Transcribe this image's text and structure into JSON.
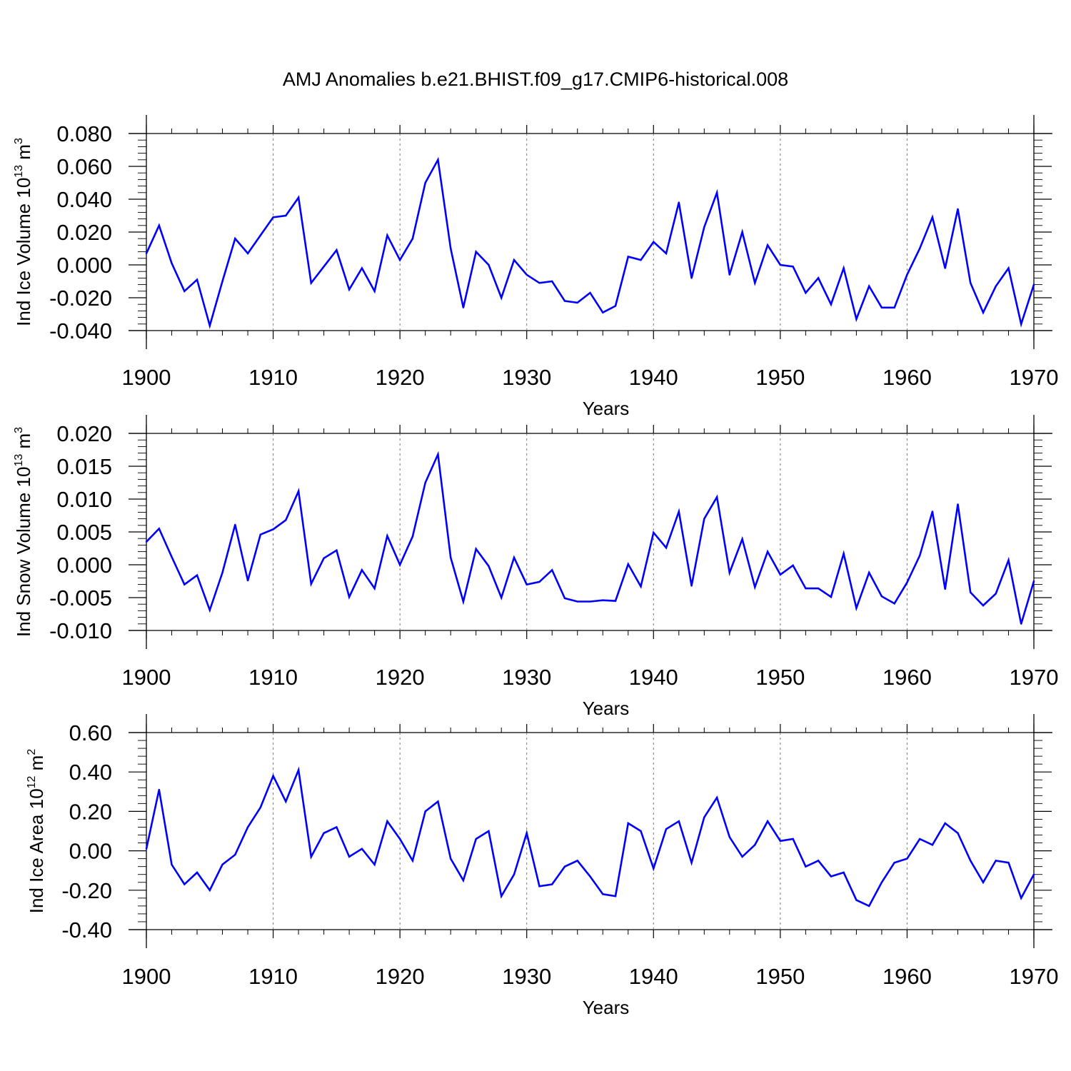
{
  "title": "AMJ Anomalies b.e21.BHIST.f09_g17.CMIP6-historical.008",
  "series_color": "#0000ff",
  "chart_data": [
    {
      "type": "line",
      "ylabel_main": "Ind Ice Volume 10",
      "ylabel_exp": "13",
      "ylabel_unit": " m",
      "ylabel_unit_exp": "3",
      "xlabel": "Years",
      "xlim": [
        1900,
        1970
      ],
      "ylim": [
        -0.04,
        0.08
      ],
      "yticks": [
        -0.04,
        -0.02,
        0.0,
        0.02,
        0.04,
        0.06,
        0.08
      ],
      "ytick_labels": [
        "-0.040",
        "-0.020",
        "0.000",
        "0.020",
        "0.040",
        "0.060",
        "0.080"
      ],
      "xticks": [
        1900,
        1910,
        1920,
        1930,
        1940,
        1950,
        1960,
        1970
      ],
      "xtick_labels": [
        "1900",
        "1910",
        "1920",
        "1930",
        "1940",
        "1950",
        "1960",
        "1970"
      ],
      "x_start": 1900,
      "values": [
        0.007,
        0.024,
        0.001,
        -0.016,
        -0.009,
        -0.037,
        -0.01,
        0.016,
        0.007,
        0.018,
        0.029,
        0.03,
        0.041,
        -0.011,
        -0.001,
        0.009,
        -0.015,
        -0.002,
        -0.016,
        0.018,
        0.003,
        0.016,
        0.05,
        0.064,
        0.01,
        -0.026,
        0.008,
        0.0,
        -0.02,
        0.003,
        -0.006,
        -0.011,
        -0.01,
        -0.022,
        -0.023,
        -0.017,
        -0.029,
        -0.025,
        0.005,
        0.003,
        0.014,
        0.007,
        0.038,
        -0.008,
        0.023,
        0.044,
        -0.006,
        0.02,
        -0.011,
        0.012,
        0.0,
        -0.001,
        -0.017,
        -0.008,
        -0.024,
        -0.002,
        -0.033,
        -0.013,
        -0.026,
        -0.026,
        -0.006,
        0.01,
        0.029,
        -0.002,
        0.034,
        -0.011,
        -0.029,
        -0.013,
        -0.002,
        -0.036,
        -0.012
      ]
    },
    {
      "type": "line",
      "ylabel_main": "Ind Snow Volume 10",
      "ylabel_exp": "13",
      "ylabel_unit": " m",
      "ylabel_unit_exp": "3",
      "xlabel": "Years",
      "xlim": [
        1900,
        1970
      ],
      "ylim": [
        -0.01,
        0.02
      ],
      "yticks": [
        -0.01,
        -0.005,
        0.0,
        0.005,
        0.01,
        0.015,
        0.02
      ],
      "ytick_labels": [
        "-0.010",
        "-0.005",
        "0.000",
        "0.005",
        "0.010",
        "0.015",
        "0.020"
      ],
      "xticks": [
        1900,
        1910,
        1920,
        1930,
        1940,
        1950,
        1960,
        1970
      ],
      "xtick_labels": [
        "1900",
        "1910",
        "1920",
        "1930",
        "1940",
        "1950",
        "1960",
        "1970"
      ],
      "x_start": 1900,
      "values": [
        0.0035,
        0.0055,
        0.0012,
        -0.003,
        -0.0016,
        -0.0069,
        -0.0012,
        0.0061,
        -0.0024,
        0.0046,
        0.0054,
        0.0068,
        0.0112,
        -0.0029,
        0.001,
        0.0022,
        -0.0049,
        -0.0008,
        -0.0036,
        0.0044,
        0.0,
        0.0043,
        0.0125,
        0.0168,
        0.0011,
        -0.0056,
        0.0024,
        -0.0002,
        -0.005,
        0.0011,
        -0.003,
        -0.0026,
        -0.0008,
        -0.0051,
        -0.0056,
        -0.0056,
        -0.0054,
        -0.0055,
        0.0001,
        -0.0033,
        0.0049,
        0.0026,
        0.0081,
        -0.0032,
        0.007,
        0.0103,
        -0.0012,
        0.0039,
        -0.0034,
        0.002,
        -0.0015,
        -0.0001,
        -0.0036,
        -0.0036,
        -0.0049,
        0.0017,
        -0.0066,
        -0.0012,
        -0.0048,
        -0.0059,
        -0.0027,
        0.0014,
        0.0081,
        -0.0037,
        0.0092,
        -0.0042,
        -0.0062,
        -0.0044,
        0.0007,
        -0.009,
        -0.0025
      ]
    },
    {
      "type": "line",
      "ylabel_main": "Ind Ice Area 10",
      "ylabel_exp": "12",
      "ylabel_unit": " m",
      "ylabel_unit_exp": "2",
      "xlabel": "Years",
      "xlim": [
        1900,
        1970
      ],
      "ylim": [
        -0.4,
        0.6
      ],
      "yticks": [
        -0.4,
        -0.2,
        0.0,
        0.2,
        0.4,
        0.6
      ],
      "ytick_labels": [
        "-0.40",
        "-0.20",
        "0.00",
        "0.20",
        "0.40",
        "0.60"
      ],
      "xticks": [
        1900,
        1910,
        1920,
        1930,
        1940,
        1950,
        1960,
        1970
      ],
      "xtick_labels": [
        "1900",
        "1910",
        "1920",
        "1930",
        "1940",
        "1950",
        "1960",
        "1970"
      ],
      "x_start": 1900,
      "values": [
        0.01,
        0.31,
        -0.07,
        -0.17,
        -0.11,
        -0.2,
        -0.07,
        -0.02,
        0.12,
        0.22,
        0.38,
        0.25,
        0.41,
        -0.03,
        0.09,
        0.12,
        -0.03,
        0.01,
        -0.07,
        0.15,
        0.06,
        -0.05,
        0.2,
        0.25,
        -0.04,
        -0.15,
        0.06,
        0.1,
        -0.23,
        -0.12,
        0.09,
        -0.18,
        -0.17,
        -0.08,
        -0.05,
        -0.13,
        -0.22,
        -0.23,
        0.14,
        0.1,
        -0.09,
        0.11,
        0.15,
        -0.06,
        0.17,
        0.27,
        0.07,
        -0.03,
        0.03,
        0.15,
        0.05,
        0.06,
        -0.08,
        -0.05,
        -0.13,
        -0.11,
        -0.25,
        -0.28,
        -0.16,
        -0.06,
        -0.04,
        0.06,
        0.03,
        0.14,
        0.09,
        -0.05,
        -0.16,
        -0.05,
        -0.06,
        -0.24,
        -0.12
      ]
    }
  ]
}
